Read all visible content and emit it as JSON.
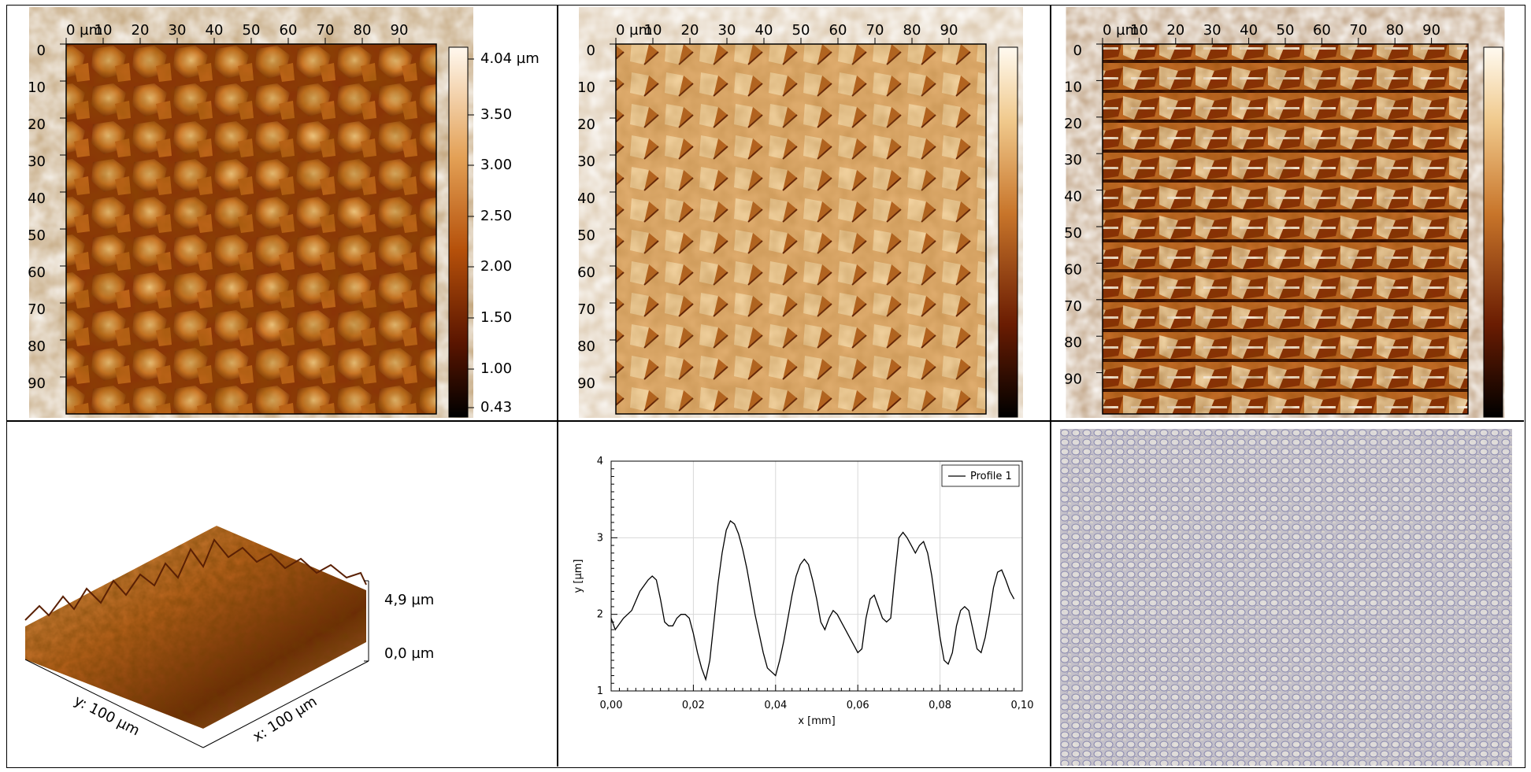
{
  "afm_height": {
    "x_axis_prefix": "0 µm",
    "x_ticks": [
      "10",
      "20",
      "30",
      "40",
      "50",
      "60",
      "70",
      "80",
      "90"
    ],
    "y_ticks": [
      "0",
      "10",
      "20",
      "30",
      "40",
      "50",
      "60",
      "70",
      "80",
      "90"
    ],
    "colorbar_labels": [
      "4.04 µm",
      "3.50",
      "3.00",
      "2.50",
      "2.00",
      "1.50",
      "1.00",
      "0.43"
    ]
  },
  "afm_amplitude": {
    "x_axis_prefix": "0 µm",
    "x_ticks": [
      "10",
      "20",
      "30",
      "40",
      "50",
      "60",
      "70",
      "80",
      "90"
    ],
    "y_ticks": [
      "0",
      "10",
      "20",
      "30",
      "40",
      "50",
      "60",
      "70",
      "80",
      "90"
    ]
  },
  "afm_phase": {
    "x_axis_prefix": "0 µm",
    "x_ticks": [
      "10",
      "20",
      "30",
      "40",
      "50",
      "60",
      "70",
      "80",
      "90"
    ],
    "y_ticks": [
      "0",
      "10",
      "20",
      "30",
      "40",
      "50",
      "60",
      "70",
      "80",
      "90"
    ]
  },
  "view3d": {
    "z_top": "4,9 µm",
    "z_bottom": "0,0 µm",
    "x_label": "x: 100 µm",
    "y_label": "y: 100 µm"
  },
  "chart_data": {
    "type": "line",
    "xlabel": "x [mm]",
    "ylabel": "y [µm]",
    "xlim": [
      0,
      0.1
    ],
    "ylim": [
      1,
      4
    ],
    "x_tick_labels": [
      "0,00",
      "0,02",
      "0,04",
      "0,06",
      "0,08",
      "0,10"
    ],
    "y_tick_labels": [
      "1",
      "2",
      "3",
      "4"
    ],
    "grid": true,
    "legend": "top-right",
    "series": [
      {
        "name": "Profile 1",
        "x": [
          0.0,
          0.001,
          0.003,
          0.005,
          0.007,
          0.009,
          0.01,
          0.011,
          0.012,
          0.013,
          0.014,
          0.015,
          0.016,
          0.017,
          0.018,
          0.019,
          0.02,
          0.021,
          0.022,
          0.023,
          0.024,
          0.025,
          0.026,
          0.027,
          0.028,
          0.029,
          0.03,
          0.031,
          0.032,
          0.033,
          0.034,
          0.035,
          0.036,
          0.037,
          0.038,
          0.039,
          0.04,
          0.041,
          0.042,
          0.043,
          0.044,
          0.045,
          0.046,
          0.047,
          0.048,
          0.049,
          0.05,
          0.051,
          0.052,
          0.053,
          0.054,
          0.055,
          0.056,
          0.057,
          0.058,
          0.059,
          0.06,
          0.061,
          0.062,
          0.063,
          0.064,
          0.065,
          0.066,
          0.067,
          0.068,
          0.069,
          0.07,
          0.071,
          0.072,
          0.073,
          0.074,
          0.075,
          0.076,
          0.077,
          0.078,
          0.079,
          0.08,
          0.081,
          0.082,
          0.083,
          0.084,
          0.085,
          0.086,
          0.087,
          0.088,
          0.089,
          0.09,
          0.091,
          0.092,
          0.093,
          0.094,
          0.095,
          0.096,
          0.097,
          0.098
        ],
        "y": [
          1.95,
          1.8,
          1.95,
          2.05,
          2.3,
          2.45,
          2.5,
          2.45,
          2.2,
          1.9,
          1.85,
          1.85,
          1.95,
          2.0,
          2.0,
          1.95,
          1.75,
          1.5,
          1.3,
          1.15,
          1.4,
          1.9,
          2.4,
          2.8,
          3.1,
          3.22,
          3.18,
          3.05,
          2.85,
          2.6,
          2.3,
          2.0,
          1.75,
          1.5,
          1.3,
          1.25,
          1.2,
          1.4,
          1.65,
          1.95,
          2.25,
          2.5,
          2.65,
          2.72,
          2.65,
          2.45,
          2.2,
          1.9,
          1.8,
          1.95,
          2.05,
          2.0,
          1.9,
          1.8,
          1.7,
          1.6,
          1.5,
          1.55,
          1.95,
          2.2,
          2.25,
          2.1,
          1.95,
          1.9,
          1.95,
          2.5,
          3.0,
          3.07,
          3.0,
          2.9,
          2.8,
          2.9,
          2.95,
          2.8,
          2.5,
          2.1,
          1.7,
          1.4,
          1.35,
          1.5,
          1.85,
          2.05,
          2.1,
          2.05,
          1.8,
          1.55,
          1.5,
          1.7,
          2.0,
          2.35,
          2.55,
          2.58,
          2.45,
          2.3,
          2.2
        ]
      }
    ]
  }
}
